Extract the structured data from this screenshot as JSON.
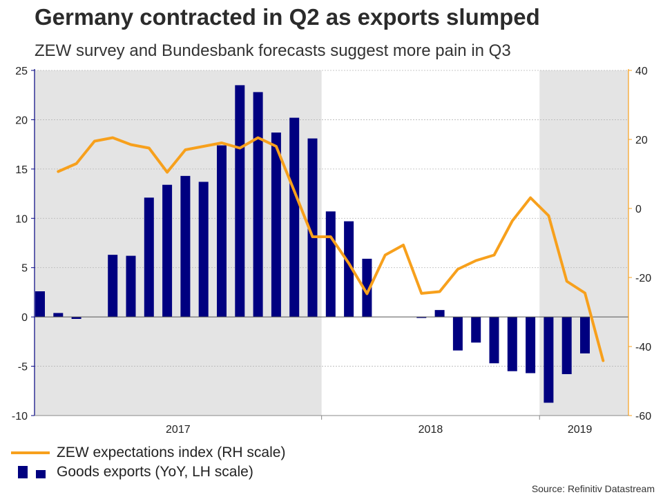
{
  "title": "Germany contracted in Q2 as exports slumped",
  "subtitle": "ZEW survey and Bundesbank forecasts suggest more pain in Q3",
  "source": "Source: Refinitiv Datastream",
  "colors": {
    "bars": "#000080",
    "line": "#f7a01c",
    "shade": "#e4e4e4",
    "left_axis": "#000080",
    "right_axis": "#f7a01c"
  },
  "chart_data": {
    "type": "bar+line",
    "categories": [
      "2016-09",
      "2016-10",
      "2016-11",
      "2016-12",
      "2017-01",
      "2017-02",
      "2017-03",
      "2017-04",
      "2017-05",
      "2017-06",
      "2017-07",
      "2017-08",
      "2017-09",
      "2017-10",
      "2017-11",
      "2017-12",
      "2018-01",
      "2018-02",
      "2018-03",
      "2018-04",
      "2018-05",
      "2018-06",
      "2018-07",
      "2018-08",
      "2018-09",
      "2018-10",
      "2018-11",
      "2018-12",
      "2019-01",
      "2019-02",
      "2019-03",
      "2019-04",
      "2019-05",
      "2019-06",
      "2019-07"
    ],
    "x_tick_labels": [
      "2017",
      "2018",
      "2019"
    ],
    "shaded_periods": [
      "2017",
      "2019"
    ],
    "series": [
      {
        "name": "Goods exports (YoY, LH scale)",
        "type": "bar",
        "axis": "left",
        "values": [
          2.6,
          0.4,
          -0.2,
          null,
          6.3,
          6.2,
          12.1,
          13.4,
          14.3,
          13.7,
          17.4,
          23.5,
          22.8,
          18.7,
          20.2,
          18.1,
          10.7,
          9.7,
          5.9,
          null,
          null,
          -0.1,
          0.7,
          -3.4,
          -2.6,
          -4.7,
          -5.5,
          -5.7,
          -8.7,
          -5.8,
          -3.7,
          null,
          null,
          null,
          null
        ]
      },
      {
        "name": "ZEW expectations index (RH scale)",
        "type": "line",
        "axis": "right",
        "values": [
          null,
          10.7,
          13,
          19.5,
          20.5,
          18.5,
          17.5,
          10.5,
          17,
          18,
          19,
          17.5,
          20.5,
          18,
          5,
          -8.2,
          -8.2,
          -15.9,
          -24.7,
          -13.5,
          -10.6,
          -24.6,
          -24.1,
          -17.6,
          -15.1,
          -13.5,
          -3.6,
          3.1,
          -2.1,
          -21.1,
          -24.5,
          -44.1,
          null,
          null,
          null
        ]
      }
    ],
    "left_axis": {
      "min": -10,
      "max": 25,
      "ticks": [
        -10,
        -5,
        0,
        5,
        10,
        15,
        20,
        25
      ]
    },
    "right_axis": {
      "min": -60,
      "max": 40,
      "ticks": [
        -60,
        -40,
        -20,
        0,
        20,
        40
      ]
    }
  },
  "legend": {
    "line_label": "ZEW expectations index (RH scale)",
    "bar_label": "Goods exports (YoY, LH scale)"
  }
}
